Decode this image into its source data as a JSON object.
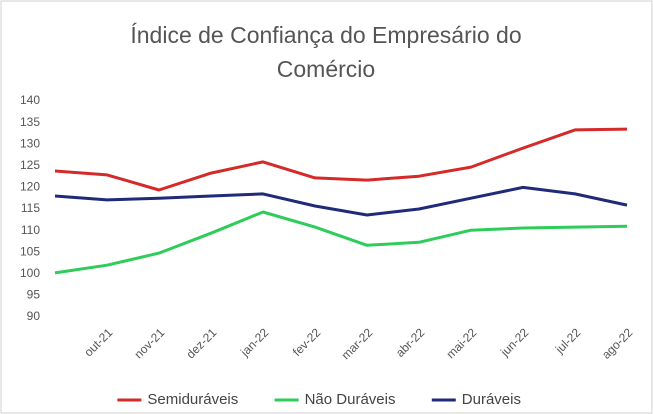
{
  "chart_data": {
    "type": "line",
    "title": "Índice de Confiança do Empresário do Comércio",
    "categories": [
      null,
      "out-21",
      "nov-21",
      "dez-21",
      "jan-22",
      "fev-22",
      "mar-22",
      "abr-22",
      "mai-22",
      "jun-22",
      "jul-22",
      "ago-22"
    ],
    "series": [
      {
        "name": "Semiduráveis",
        "color": "#d42a2a",
        "values": [
          123.8,
          122.9,
          119.4,
          123.3,
          125.9,
          122.2,
          121.7,
          122.6,
          124.7,
          129.1,
          133.3,
          133.5
        ]
      },
      {
        "name": "Não Duráveis",
        "color": "#2ecc5a",
        "values": [
          100.2,
          102,
          104.8,
          109.4,
          114.3,
          110.8,
          106.6,
          107.3,
          110.1,
          110.6,
          110.8,
          111
        ]
      },
      {
        "name": "Duráveis",
        "color": "#1f2a78",
        "values": [
          118,
          117.1,
          117.5,
          118,
          118.5,
          115.7,
          113.6,
          115,
          117.5,
          120,
          118.5,
          115.9
        ]
      }
    ],
    "ylim": [
      90,
      140
    ],
    "yticks": [
      90,
      95,
      100,
      105,
      110,
      115,
      120,
      125,
      130,
      135,
      140
    ],
    "grid": false,
    "legend": "bottom"
  }
}
